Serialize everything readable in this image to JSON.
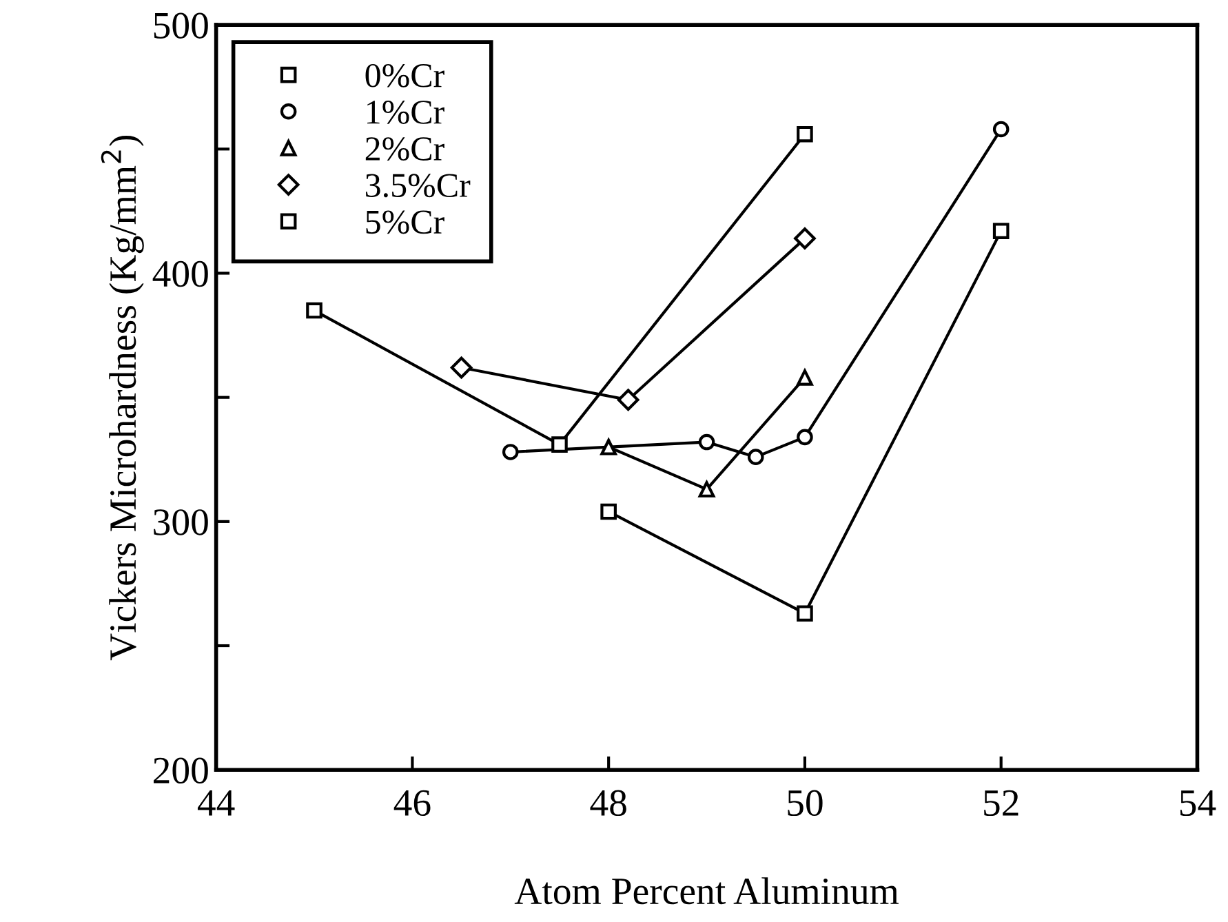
{
  "chart_data": {
    "type": "line",
    "xlabel": "Atom Percent Aluminum",
    "ylabel": "Vickers Microhardness (Kg/mm$^{2}$)",
    "xlim": [
      44,
      54
    ],
    "xticks": [
      44,
      46,
      48,
      50,
      52,
      54
    ],
    "ylim": [
      200,
      500
    ],
    "yticks": [
      200,
      {
        "value": 250,
        "label": null
      },
      300,
      {
        "value": 350,
        "label": null
      },
      400,
      {
        "value": 450,
        "label": null
      },
      500
    ],
    "grid": false,
    "legend": "top left",
    "line_style": "solid",
    "series": [
      {
        "name": "0%Cr",
        "color": "#000000",
        "marker": "square",
        "x": [
          48,
          50,
          52
        ],
        "values": [
          304,
          263,
          417
        ]
      },
      {
        "name": "1%Cr",
        "color": "#000000",
        "marker": "circle",
        "x": [
          47,
          49,
          49.5,
          50,
          52
        ],
        "values": [
          328,
          332,
          326,
          334,
          458
        ]
      },
      {
        "name": "2%Cr",
        "color": "#000000",
        "marker": "triangle",
        "x": [
          48,
          49,
          50
        ],
        "values": [
          330,
          313,
          358
        ]
      },
      {
        "name": "3.5%Cr",
        "color": "#000000",
        "marker": "diamond",
        "x": [
          46.5,
          48.2,
          50
        ],
        "values": [
          362,
          349,
          414
        ]
      },
      {
        "name": "5%Cr",
        "color": "#000000",
        "marker": "square",
        "x": [
          45,
          47.5,
          50
        ],
        "values": [
          385,
          331,
          456
        ]
      }
    ]
  }
}
